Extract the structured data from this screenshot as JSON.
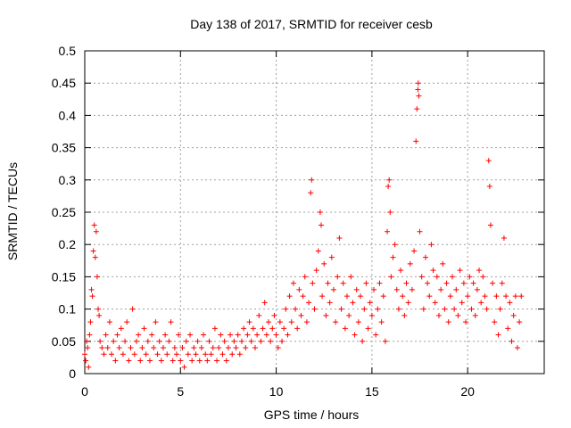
{
  "chart_data": {
    "type": "scatter",
    "title": "Day 138 of 2017, SRMTID for receiver cesb",
    "xlabel": "GPS time / hours",
    "ylabel": "SRMTID / TECUs",
    "xlim": [
      0,
      24
    ],
    "ylim": [
      0,
      0.5
    ],
    "xticks": [
      0,
      5,
      10,
      15,
      20
    ],
    "xtick_labels": [
      "0",
      "5",
      "10",
      "15",
      "20"
    ],
    "yticks": [
      0,
      0.05,
      0.1,
      0.15,
      0.2,
      0.25,
      0.3,
      0.35,
      0.4,
      0.45,
      0.5
    ],
    "ytick_labels": [
      "0",
      "0.05",
      "0.1",
      "0.15",
      "0.2",
      "0.25",
      "0.3",
      "0.35",
      "0.4",
      "0.45",
      "0.5"
    ],
    "grid": true,
    "marker": "plus",
    "color": "#ff0000",
    "series": [
      {
        "name": "SRMTID",
        "points": [
          [
            0.0,
            0.03
          ],
          [
            0.05,
            0.02
          ],
          [
            0.1,
            0.05
          ],
          [
            0.15,
            0.04
          ],
          [
            0.2,
            0.01
          ],
          [
            0.25,
            0.06
          ],
          [
            0.3,
            0.08
          ],
          [
            0.35,
            0.13
          ],
          [
            0.4,
            0.12
          ],
          [
            0.45,
            0.19
          ],
          [
            0.5,
            0.23
          ],
          [
            0.55,
            0.18
          ],
          [
            0.6,
            0.22
          ],
          [
            0.65,
            0.15
          ],
          [
            0.7,
            0.1
          ],
          [
            0.75,
            0.09
          ],
          [
            0.8,
            0.05
          ],
          [
            0.9,
            0.04
          ],
          [
            1.0,
            0.03
          ],
          [
            1.1,
            0.06
          ],
          [
            1.2,
            0.04
          ],
          [
            1.3,
            0.08
          ],
          [
            1.4,
            0.03
          ],
          [
            1.5,
            0.05
          ],
          [
            1.6,
            0.02
          ],
          [
            1.7,
            0.06
          ],
          [
            1.8,
            0.04
          ],
          [
            1.9,
            0.07
          ],
          [
            2.0,
            0.03
          ],
          [
            2.1,
            0.05
          ],
          [
            2.2,
            0.08
          ],
          [
            2.3,
            0.02
          ],
          [
            2.4,
            0.04
          ],
          [
            2.5,
            0.1
          ],
          [
            2.6,
            0.03
          ],
          [
            2.7,
            0.05
          ],
          [
            2.8,
            0.06
          ],
          [
            2.9,
            0.02
          ],
          [
            3.0,
            0.04
          ],
          [
            3.1,
            0.07
          ],
          [
            3.2,
            0.03
          ],
          [
            3.3,
            0.05
          ],
          [
            3.4,
            0.02
          ],
          [
            3.5,
            0.06
          ],
          [
            3.6,
            0.04
          ],
          [
            3.7,
            0.08
          ],
          [
            3.8,
            0.03
          ],
          [
            3.9,
            0.05
          ],
          [
            4.0,
            0.02
          ],
          [
            4.1,
            0.04
          ],
          [
            4.2,
            0.06
          ],
          [
            4.3,
            0.03
          ],
          [
            4.4,
            0.05
          ],
          [
            4.5,
            0.08
          ],
          [
            4.6,
            0.02
          ],
          [
            4.7,
            0.04
          ],
          [
            4.8,
            0.03
          ],
          [
            4.9,
            0.06
          ],
          [
            5.0,
            0.02
          ],
          [
            5.1,
            0.04
          ],
          [
            5.2,
            0.01
          ],
          [
            5.3,
            0.05
          ],
          [
            5.4,
            0.03
          ],
          [
            5.5,
            0.06
          ],
          [
            5.6,
            0.02
          ],
          [
            5.7,
            0.04
          ],
          [
            5.8,
            0.03
          ],
          [
            5.9,
            0.05
          ],
          [
            6.0,
            0.02
          ],
          [
            6.1,
            0.04
          ],
          [
            6.2,
            0.06
          ],
          [
            6.3,
            0.03
          ],
          [
            6.4,
            0.02
          ],
          [
            6.5,
            0.05
          ],
          [
            6.6,
            0.03
          ],
          [
            6.7,
            0.04
          ],
          [
            6.8,
            0.07
          ],
          [
            6.9,
            0.02
          ],
          [
            7.0,
            0.04
          ],
          [
            7.1,
            0.06
          ],
          [
            7.2,
            0.03
          ],
          [
            7.3,
            0.05
          ],
          [
            7.4,
            0.02
          ],
          [
            7.5,
            0.04
          ],
          [
            7.6,
            0.06
          ],
          [
            7.7,
            0.03
          ],
          [
            7.8,
            0.05
          ],
          [
            7.9,
            0.04
          ],
          [
            8.0,
            0.06
          ],
          [
            8.1,
            0.03
          ],
          [
            8.2,
            0.05
          ],
          [
            8.3,
            0.07
          ],
          [
            8.4,
            0.04
          ],
          [
            8.5,
            0.06
          ],
          [
            8.6,
            0.08
          ],
          [
            8.7,
            0.05
          ],
          [
            8.8,
            0.07
          ],
          [
            8.9,
            0.04
          ],
          [
            9.0,
            0.06
          ],
          [
            9.1,
            0.09
          ],
          [
            9.2,
            0.05
          ],
          [
            9.3,
            0.07
          ],
          [
            9.4,
            0.11
          ],
          [
            9.5,
            0.06
          ],
          [
            9.6,
            0.08
          ],
          [
            9.7,
            0.05
          ],
          [
            9.8,
            0.07
          ],
          [
            9.9,
            0.09
          ],
          [
            10.0,
            0.06
          ],
          [
            10.1,
            0.04
          ],
          [
            10.2,
            0.08
          ],
          [
            10.3,
            0.05
          ],
          [
            10.4,
            0.07
          ],
          [
            10.5,
            0.1
          ],
          [
            10.6,
            0.06
          ],
          [
            10.7,
            0.12
          ],
          [
            10.8,
            0.08
          ],
          [
            10.9,
            0.14
          ],
          [
            11.0,
            0.1
          ],
          [
            11.1,
            0.07
          ],
          [
            11.2,
            0.13
          ],
          [
            11.3,
            0.09
          ],
          [
            11.4,
            0.12
          ],
          [
            11.5,
            0.15
          ],
          [
            11.6,
            0.08
          ],
          [
            11.7,
            0.11
          ],
          [
            11.8,
            0.28
          ],
          [
            11.85,
            0.3
          ],
          [
            11.9,
            0.14
          ],
          [
            12.0,
            0.1
          ],
          [
            12.1,
            0.16
          ],
          [
            12.2,
            0.19
          ],
          [
            12.3,
            0.25
          ],
          [
            12.35,
            0.23
          ],
          [
            12.4,
            0.12
          ],
          [
            12.5,
            0.17
          ],
          [
            12.6,
            0.09
          ],
          [
            12.7,
            0.14
          ],
          [
            12.8,
            0.11
          ],
          [
            12.9,
            0.18
          ],
          [
            13.0,
            0.13
          ],
          [
            13.1,
            0.08
          ],
          [
            13.2,
            0.15
          ],
          [
            13.3,
            0.21
          ],
          [
            13.4,
            0.1
          ],
          [
            13.5,
            0.14
          ],
          [
            13.6,
            0.07
          ],
          [
            13.7,
            0.12
          ],
          [
            13.8,
            0.09
          ],
          [
            13.9,
            0.15
          ],
          [
            14.0,
            0.11
          ],
          [
            14.1,
            0.06
          ],
          [
            14.2,
            0.13
          ],
          [
            14.3,
            0.08
          ],
          [
            14.4,
            0.12
          ],
          [
            14.5,
            0.05
          ],
          [
            14.6,
            0.1
          ],
          [
            14.7,
            0.14
          ],
          [
            14.8,
            0.07
          ],
          [
            14.9,
            0.11
          ],
          [
            15.0,
            0.09
          ],
          [
            15.1,
            0.13
          ],
          [
            15.2,
            0.06
          ],
          [
            15.3,
            0.1
          ],
          [
            15.4,
            0.14
          ],
          [
            15.5,
            0.08
          ],
          [
            15.6,
            0.12
          ],
          [
            15.7,
            0.05
          ],
          [
            15.8,
            0.22
          ],
          [
            15.85,
            0.29
          ],
          [
            15.9,
            0.3
          ],
          [
            15.95,
            0.25
          ],
          [
            16.0,
            0.15
          ],
          [
            16.1,
            0.18
          ],
          [
            16.2,
            0.2
          ],
          [
            16.3,
            0.13
          ],
          [
            16.4,
            0.1
          ],
          [
            16.5,
            0.16
          ],
          [
            16.6,
            0.12
          ],
          [
            16.7,
            0.09
          ],
          [
            16.8,
            0.14
          ],
          [
            16.9,
            0.11
          ],
          [
            17.0,
            0.17
          ],
          [
            17.1,
            0.13
          ],
          [
            17.2,
            0.19
          ],
          [
            17.3,
            0.36
          ],
          [
            17.35,
            0.41
          ],
          [
            17.4,
            0.44
          ],
          [
            17.42,
            0.45
          ],
          [
            17.45,
            0.43
          ],
          [
            17.5,
            0.22
          ],
          [
            17.6,
            0.15
          ],
          [
            17.7,
            0.1
          ],
          [
            17.8,
            0.18
          ],
          [
            17.9,
            0.14
          ],
          [
            18.0,
            0.12
          ],
          [
            18.1,
            0.2
          ],
          [
            18.2,
            0.16
          ],
          [
            18.3,
            0.11
          ],
          [
            18.4,
            0.15
          ],
          [
            18.5,
            0.09
          ],
          [
            18.6,
            0.13
          ],
          [
            18.7,
            0.17
          ],
          [
            18.8,
            0.1
          ],
          [
            18.9,
            0.14
          ],
          [
            19.0,
            0.08
          ],
          [
            19.1,
            0.12
          ],
          [
            19.2,
            0.15
          ],
          [
            19.3,
            0.1
          ],
          [
            19.4,
            0.13
          ],
          [
            19.5,
            0.09
          ],
          [
            19.6,
            0.16
          ],
          [
            19.7,
            0.11
          ],
          [
            19.8,
            0.14
          ],
          [
            19.9,
            0.08
          ],
          [
            20.0,
            0.12
          ],
          [
            20.1,
            0.15
          ],
          [
            20.2,
            0.1
          ],
          [
            20.3,
            0.14
          ],
          [
            20.4,
            0.09
          ],
          [
            20.5,
            0.13
          ],
          [
            20.6,
            0.16
          ],
          [
            20.7,
            0.11
          ],
          [
            20.8,
            0.15
          ],
          [
            20.9,
            0.12
          ],
          [
            21.0,
            0.1
          ],
          [
            21.1,
            0.33
          ],
          [
            21.15,
            0.29
          ],
          [
            21.2,
            0.23
          ],
          [
            21.3,
            0.14
          ],
          [
            21.4,
            0.08
          ],
          [
            21.5,
            0.12
          ],
          [
            21.6,
            0.06
          ],
          [
            21.7,
            0.1
          ],
          [
            21.8,
            0.14
          ],
          [
            21.9,
            0.21
          ],
          [
            22.0,
            0.12
          ],
          [
            22.1,
            0.07
          ],
          [
            22.2,
            0.11
          ],
          [
            22.3,
            0.05
          ],
          [
            22.4,
            0.09
          ],
          [
            22.5,
            0.12
          ],
          [
            22.6,
            0.04
          ],
          [
            22.7,
            0.08
          ],
          [
            22.8,
            0.12
          ]
        ]
      }
    ]
  }
}
